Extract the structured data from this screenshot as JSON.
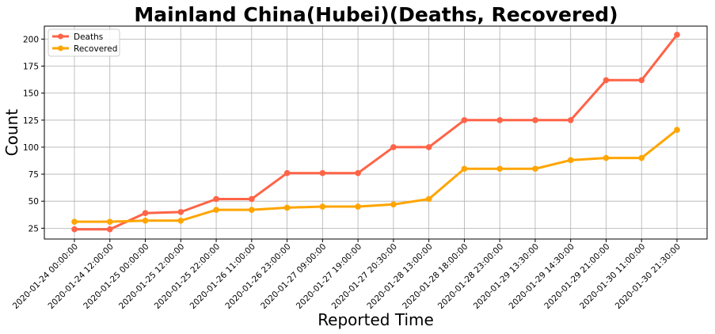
{
  "chart_data": {
    "type": "line",
    "title": "Mainland China(Hubei)(Deaths, Recovered)",
    "xlabel": "Reported Time",
    "ylabel": "Count",
    "ylim": [
      15,
      212
    ],
    "yticks": [
      25,
      50,
      75,
      100,
      125,
      150,
      175,
      200
    ],
    "grid": true,
    "legend_position": "top-left",
    "categories": [
      "2020-01-24 00:00:00",
      "2020-01-24 12:00:00",
      "2020-01-25 00:00:00",
      "2020-01-25 12:00:00",
      "2020-01-25 22:00:00",
      "2020-01-26 11:00:00",
      "2020-01-26 23:00:00",
      "2020-01-27 09:00:00",
      "2020-01-27 19:00:00",
      "2020-01-27 20:30:00",
      "2020-01-28 13:00:00",
      "2020-01-28 18:00:00",
      "2020-01-28 23:00:00",
      "2020-01-29 13:30:00",
      "2020-01-29 14:30:00",
      "2020-01-29 21:00:00",
      "2020-01-30 11:00:00",
      "2020-01-30 21:30:00"
    ],
    "series": [
      {
        "name": "Deaths",
        "color": "#ff6347",
        "values": [
          24,
          24,
          39,
          40,
          52,
          52,
          76,
          76,
          76,
          100,
          100,
          125,
          125,
          125,
          125,
          162,
          162,
          204
        ]
      },
      {
        "name": "Recovered",
        "color": "#ffa500",
        "values": [
          31,
          31,
          32,
          32,
          42,
          42,
          44,
          45,
          45,
          47,
          52,
          80,
          80,
          80,
          88,
          90,
          90,
          116
        ]
      }
    ]
  }
}
